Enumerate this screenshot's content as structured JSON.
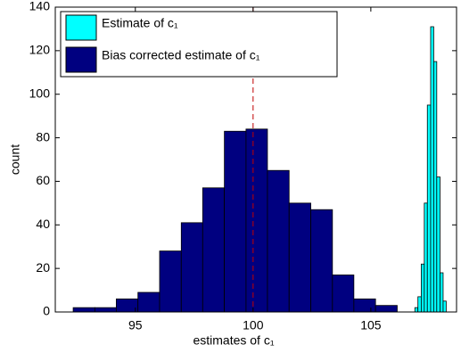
{
  "chart_data": {
    "type": "histogram",
    "xlabel": "estimates of c₁",
    "ylabel": "count",
    "xlim": [
      91.6,
      108.64
    ],
    "ylim": [
      0,
      140
    ],
    "xticks": [
      95,
      100,
      105
    ],
    "yticks": [
      0,
      20,
      40,
      60,
      80,
      100,
      120,
      140
    ],
    "legend": "upper left",
    "vline": {
      "x": 100,
      "color": "#c00000"
    },
    "series": [
      {
        "name": "Estimate of c₁",
        "color": "#00ffff",
        "bins": [
          106.87,
          107.0,
          107.14,
          107.27,
          107.4,
          107.54,
          107.67,
          107.8,
          107.94,
          108.07,
          108.2
        ],
        "values": [
          2,
          7,
          22,
          50,
          95,
          131,
          115,
          62,
          18,
          5
        ]
      },
      {
        "name": "Bias corrected estimate of c₁",
        "color": "#000080",
        "bins": [
          92.36,
          93.28,
          94.19,
          95.11,
          96.03,
          96.95,
          97.86,
          98.78,
          99.7,
          100.61,
          101.53,
          102.45,
          103.37,
          104.28,
          105.2,
          106.12
        ],
        "values": [
          2,
          2,
          6,
          9,
          28,
          41,
          57,
          83,
          84,
          65,
          50,
          47,
          17,
          6,
          3
        ]
      }
    ]
  }
}
